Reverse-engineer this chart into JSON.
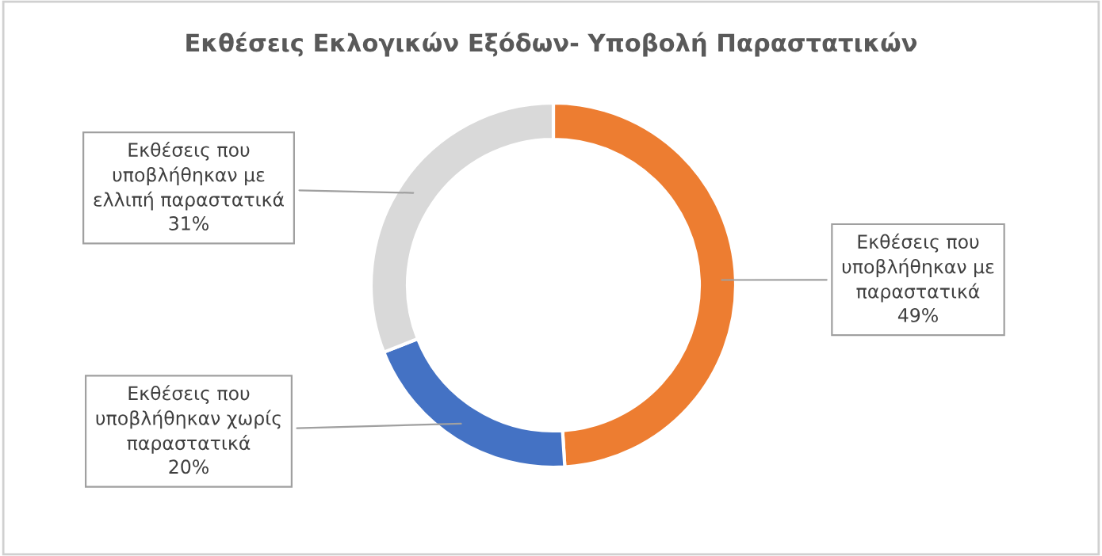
{
  "chart_data": {
    "type": "donut",
    "title": "Εκθέσεις Εκλογικών Εξόδων- Υποβολή Παραστατικών",
    "categories": [
      "Εκθέσεις που\nυποβλήθηκαν με\nπαραστατικά",
      "Εκθέσεις που\nυποβλήθηκαν χωρίς\nπαραστατικά",
      "Εκθέσεις που\nυποβλήθηκαν με\nελλιπή παραστατικά"
    ],
    "values": [
      49,
      20,
      31
    ],
    "colors": [
      "#ed7d31",
      "#4472c4",
      "#d9d9d9"
    ],
    "value_labels": [
      "49%",
      "20%",
      "31%"
    ],
    "legend": false
  }
}
